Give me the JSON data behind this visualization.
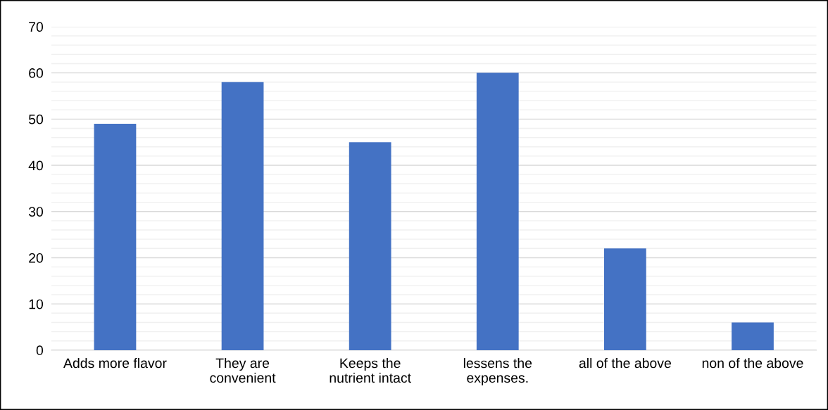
{
  "chart_data": {
    "type": "bar",
    "categories": [
      "Adds more flavor",
      "They are\nconvenient",
      "Keeps the\nnutrient intact",
      "lessens the\nexpenses.",
      "all of the above",
      "non of the above"
    ],
    "values": [
      49,
      58,
      45,
      60,
      22,
      6
    ],
    "color": "#4472c4",
    "ylim": [
      0,
      70
    ],
    "yticks": [
      0,
      {
        "value": 2,
        "label": null
      },
      {
        "value": 4,
        "label": null
      },
      {
        "value": 6,
        "label": null
      },
      {
        "value": 8,
        "label": null
      },
      10,
      {
        "value": 12,
        "label": null
      },
      {
        "value": 14,
        "label": null
      },
      {
        "value": 16,
        "label": null
      },
      {
        "value": 18,
        "label": null
      },
      20,
      {
        "value": 22,
        "label": null
      },
      {
        "value": 24,
        "label": null
      },
      {
        "value": 26,
        "label": null
      },
      {
        "value": 28,
        "label": null
      },
      30,
      {
        "value": 32,
        "label": null
      },
      {
        "value": 34,
        "label": null
      },
      {
        "value": 36,
        "label": null
      },
      {
        "value": 38,
        "label": null
      },
      40,
      {
        "value": 42,
        "label": null
      },
      {
        "value": 44,
        "label": null
      },
      {
        "value": 46,
        "label": null
      },
      {
        "value": 48,
        "label": null
      },
      50,
      {
        "value": 52,
        "label": null
      },
      {
        "value": 54,
        "label": null
      },
      {
        "value": 56,
        "label": null
      },
      {
        "value": 58,
        "label": null
      },
      60,
      {
        "value": 62,
        "label": null
      },
      {
        "value": 64,
        "label": null
      },
      {
        "value": 66,
        "label": null
      },
      {
        "value": 68,
        "label": null
      },
      70
    ],
    "grid": true
  }
}
